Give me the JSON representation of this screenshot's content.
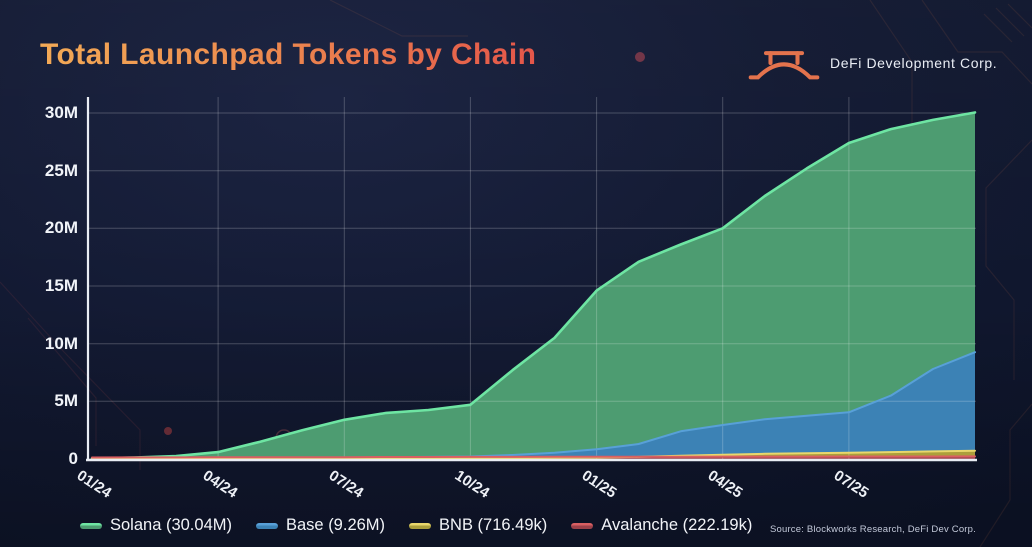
{
  "title": "Total Launchpad Tokens by Chain",
  "brand": {
    "name": "DeFi Development Corp.",
    "icon": "bridge-logo-icon"
  },
  "source": "Source: Blockworks Research, DeFi Dev Corp.",
  "colors": {
    "background": "#131a33",
    "axis": "#e9edf4",
    "gridline": "rgba(255,255,255,0.22)",
    "title_gradient_start": "#f3aa56",
    "title_gradient_end": "#e4564a",
    "solana_line": "#6ee5a3",
    "solana_fill": "#4d9c71",
    "base_line": "#58a0d8",
    "base_fill": "#3c82b5",
    "bnb_line": "#e9d76c",
    "bnb_fill": "#ac9f3b",
    "avalanche_line": "#d95f62",
    "avalanche_fill": "#9c4149"
  },
  "chart_data": {
    "type": "area",
    "title": "Total Launchpad Tokens by Chain",
    "xlabel": "",
    "ylabel": "",
    "unit": "millions of tokens (cumulative)",
    "grid": true,
    "legend_position": "bottom",
    "ylim": [
      0,
      30
    ],
    "x": [
      "01/24",
      "02/24",
      "03/24",
      "04/24",
      "05/24",
      "06/24",
      "07/24",
      "08/24",
      "09/24",
      "10/24",
      "11/24",
      "12/24",
      "01/25",
      "02/25",
      "03/25",
      "04/25",
      "05/25",
      "06/25",
      "07/25",
      "08/25",
      "09/25",
      "10/25"
    ],
    "x_tick_labels": [
      "01/24",
      "04/24",
      "07/24",
      "10/24",
      "01/25",
      "04/25",
      "07/25"
    ],
    "y_tick_labels": [
      "0",
      "5M",
      "10M",
      "15M",
      "20M",
      "25M",
      "30M"
    ],
    "series": [
      {
        "name": "Solana",
        "legend_label": "Solana (30.04M)",
        "final_total": "30.04M",
        "line": "#6ee5a3",
        "fill": "#4d9c71",
        "values": [
          0.05,
          0.12,
          0.25,
          0.6,
          1.5,
          2.5,
          3.4,
          4.0,
          4.25,
          4.7,
          7.7,
          10.5,
          14.6,
          17.1,
          18.6,
          20.0,
          22.8,
          25.2,
          27.4,
          28.6,
          29.4,
          30.04
        ]
      },
      {
        "name": "Base",
        "legend_label": "Base (9.26M)",
        "final_total": "9.26M",
        "line": "#58a0d8",
        "fill": "#3c82b5",
        "values": [
          0.02,
          0.03,
          0.05,
          0.07,
          0.09,
          0.11,
          0.13,
          0.15,
          0.18,
          0.22,
          0.35,
          0.55,
          0.85,
          1.3,
          2.4,
          2.95,
          3.45,
          3.75,
          4.05,
          5.5,
          7.8,
          9.26
        ]
      },
      {
        "name": "BNB",
        "legend_label": "BNB (716.49k)",
        "final_total": "716.49k",
        "line": "#e9d76c",
        "fill": "#ac9f3b",
        "values": [
          0.01,
          0.01,
          0.02,
          0.02,
          0.03,
          0.03,
          0.04,
          0.04,
          0.05,
          0.06,
          0.08,
          0.1,
          0.13,
          0.18,
          0.28,
          0.37,
          0.45,
          0.5,
          0.55,
          0.6,
          0.66,
          0.716
        ]
      },
      {
        "name": "Avalanche",
        "legend_label": "Avalanche (222.19k)",
        "final_total": "222.19k",
        "line": "#d95f62",
        "fill": "#9c4149",
        "values": [
          0.13,
          0.14,
          0.14,
          0.15,
          0.15,
          0.16,
          0.16,
          0.17,
          0.17,
          0.18,
          0.18,
          0.19,
          0.19,
          0.2,
          0.2,
          0.21,
          0.21,
          0.21,
          0.22,
          0.22,
          0.22,
          0.222
        ]
      }
    ]
  }
}
